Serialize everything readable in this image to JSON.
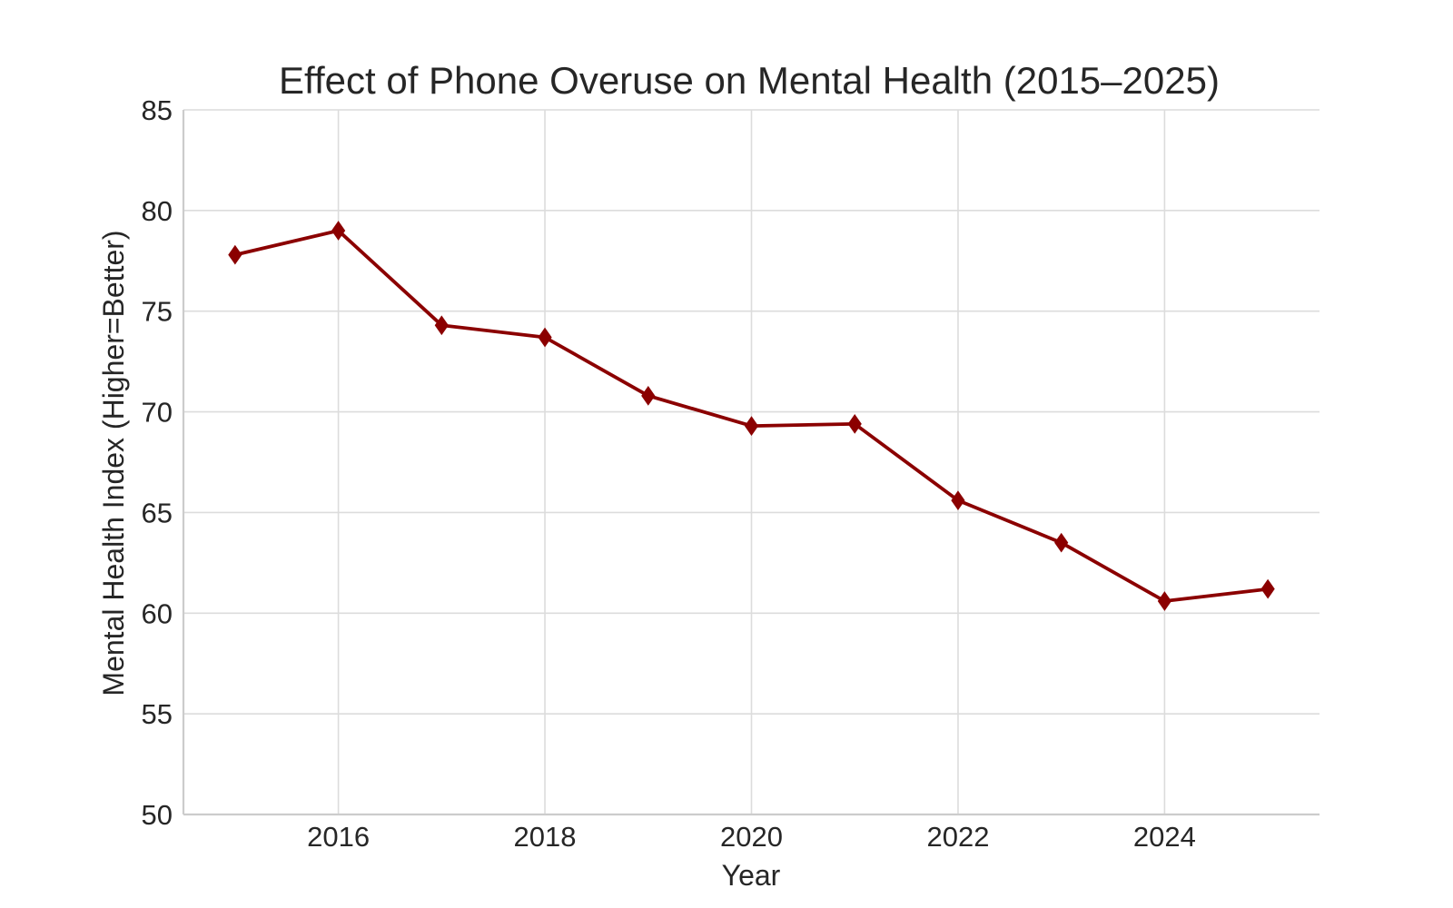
{
  "chart_data": {
    "type": "line",
    "title": "Effect of Phone Overuse on Mental Health (2015–2025)",
    "xlabel": "Year",
    "ylabel": "Mental Health Index (Higher=Better)",
    "xlim": [
      2014.5,
      2025.5
    ],
    "ylim": [
      50,
      85
    ],
    "x_ticks": [
      2016,
      2018,
      2020,
      2022,
      2024
    ],
    "y_ticks": [
      50,
      55,
      60,
      65,
      70,
      75,
      80,
      85
    ],
    "grid": true,
    "series": [
      {
        "x": [
          2015,
          2016,
          2017,
          2018,
          2019,
          2020,
          2021,
          2022,
          2023,
          2024,
          2025
        ],
        "values": [
          77.8,
          79.0,
          74.3,
          73.7,
          70.8,
          69.3,
          69.4,
          65.6,
          63.5,
          60.6,
          61.2
        ],
        "color": "#8b0000",
        "marker": "diamond"
      }
    ]
  }
}
